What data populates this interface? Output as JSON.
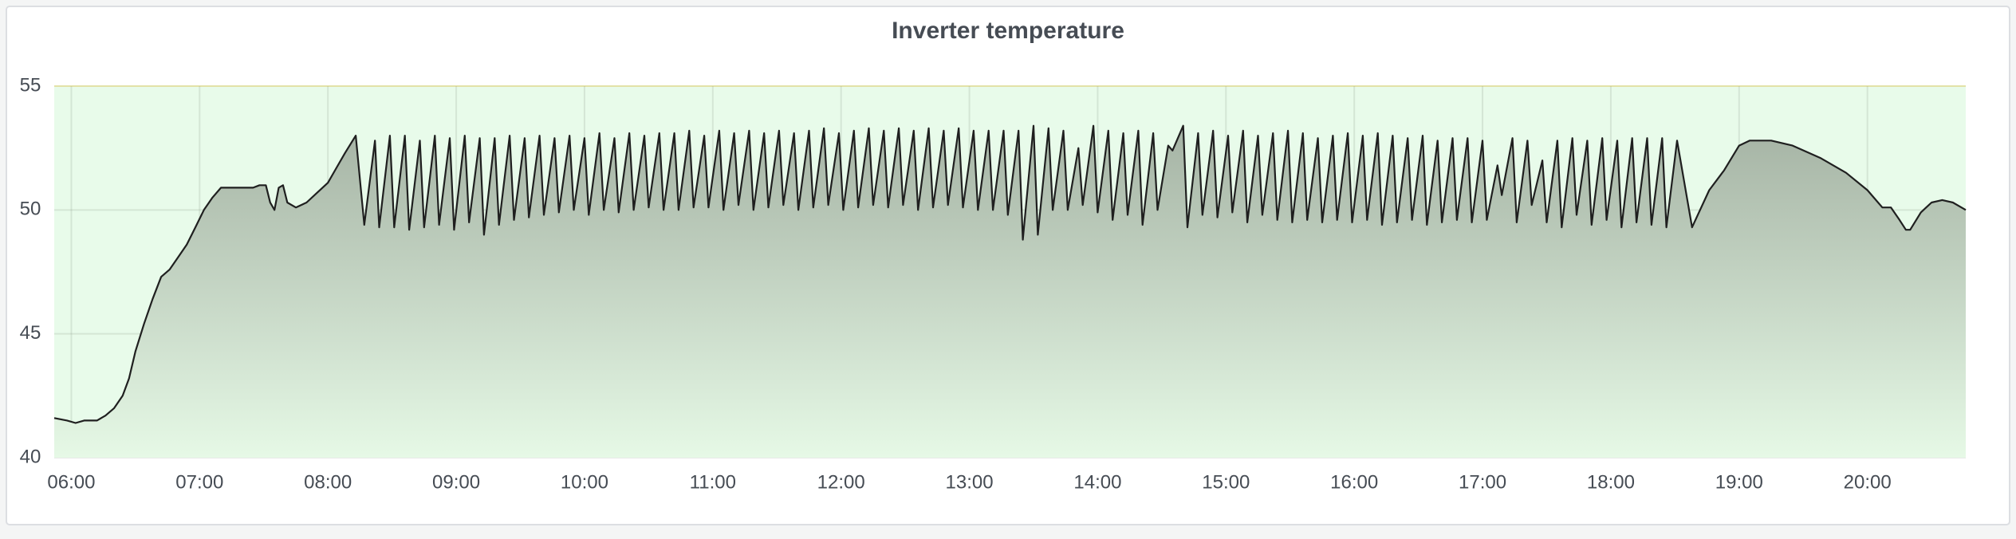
{
  "chart_data": {
    "type": "line",
    "title": "Inverter temperature",
    "x": [
      352,
      358,
      362,
      366,
      372,
      376,
      380,
      384,
      387,
      390,
      394,
      398,
      402,
      406,
      410,
      414,
      418,
      422,
      426,
      430,
      445,
      448,
      451,
      453,
      455,
      457,
      459,
      461,
      465,
      470,
      475,
      480,
      484,
      488,
      493,
      497,
      502,
      504,
      509,
      511,
      516,
      518,
      523,
      525,
      530,
      532,
      537,
      539,
      544,
      546,
      551,
      553,
      558,
      560,
      565,
      567,
      572,
      574,
      579,
      581,
      586,
      588,
      593,
      595,
      600,
      602,
      607,
      609,
      614,
      616,
      621,
      623,
      628,
      630,
      635,
      637,
      642,
      644,
      649,
      651,
      656,
      658,
      663,
      665,
      670,
      672,
      677,
      679,
      684,
      686,
      691,
      693,
      698,
      700,
      705,
      707,
      712,
      714,
      719,
      721,
      726,
      728,
      733,
      735,
      740,
      742,
      747,
      749,
      754,
      756,
      761,
      763,
      768,
      770,
      775,
      777,
      782,
      784,
      789,
      791,
      796,
      798,
      803,
      805,
      810,
      812,
      817,
      819,
      824,
      826,
      831,
      833,
      838,
      840,
      845,
      847,
      852,
      854,
      859,
      861,
      866,
      868,
      873,
      875,
      880,
      882,
      887,
      889,
      894,
      896,
      901,
      903,
      908,
      910,
      915,
      917,
      922,
      924,
      929,
      931,
      936,
      938,
      943,
      945,
      950,
      952,
      957,
      959,
      964,
      966,
      971,
      973,
      978,
      980,
      985,
      987,
      992,
      994,
      999,
      1001,
      1006,
      1008,
      1013,
      1015,
      1020,
      1022,
      1027,
      1029,
      1034,
      1036,
      1041,
      1043,
      1048,
      1050,
      1055,
      1057,
      1062,
      1064,
      1069,
      1071,
      1076,
      1078,
      1083,
      1085,
      1090,
      1092,
      1097,
      1099,
      1104,
      1106,
      1111,
      1118,
      1126,
      1133,
      1140,
      1145,
      1155,
      1165,
      1178,
      1190,
      1200,
      1207,
      1211,
      1215,
      1218,
      1220,
      1225,
      1230,
      1235,
      1240,
      1246
    ],
    "values": [
      41.6,
      41.5,
      41.4,
      41.5,
      41.5,
      41.7,
      42.0,
      42.5,
      43.2,
      44.3,
      45.4,
      46.4,
      47.3,
      47.6,
      48.1,
      48.6,
      49.3,
      50.0,
      50.5,
      50.9,
      50.9,
      51.0,
      51.0,
      50.3,
      50.0,
      50.9,
      51.0,
      50.3,
      50.1,
      50.3,
      50.7,
      51.1,
      51.7,
      52.3,
      53.0,
      49.4,
      52.8,
      49.3,
      53.0,
      49.3,
      53.0,
      49.2,
      52.8,
      49.3,
      53.0,
      49.4,
      52.9,
      49.2,
      53.0,
      49.5,
      52.9,
      49.0,
      52.9,
      49.4,
      53.0,
      49.6,
      52.9,
      49.7,
      53.0,
      49.8,
      52.9,
      49.9,
      53.0,
      50.0,
      52.9,
      49.8,
      53.1,
      50.0,
      52.9,
      49.9,
      53.1,
      50.0,
      53.0,
      50.1,
      53.1,
      50.0,
      53.1,
      50.0,
      53.2,
      50.1,
      53.0,
      50.1,
      53.2,
      50.0,
      53.1,
      50.2,
      53.2,
      50.0,
      53.1,
      50.1,
      53.2,
      50.2,
      53.1,
      50.0,
      53.2,
      50.1,
      53.3,
      50.2,
      53.1,
      50.0,
      53.2,
      50.1,
      53.3,
      50.2,
      53.2,
      50.1,
      53.3,
      50.2,
      53.2,
      50.0,
      53.3,
      50.1,
      53.2,
      50.2,
      53.3,
      50.1,
      53.2,
      50.0,
      53.2,
      50.0,
      53.2,
      49.8,
      53.2,
      48.8,
      53.4,
      49.0,
      53.3,
      50.0,
      53.2,
      50.0,
      52.5,
      50.2,
      53.4,
      49.9,
      53.2,
      49.6,
      53.1,
      49.8,
      53.2,
      49.4,
      53.1,
      50.0,
      52.6,
      52.4,
      53.4,
      49.3,
      53.1,
      49.8,
      53.2,
      49.7,
      53.0,
      49.9,
      53.2,
      49.5,
      53.0,
      49.8,
      53.1,
      49.6,
      53.2,
      49.5,
      53.1,
      49.6,
      52.9,
      49.5,
      53.0,
      49.6,
      53.1,
      49.5,
      53.0,
      49.6,
      53.1,
      49.4,
      53.0,
      49.5,
      52.9,
      49.6,
      53.0,
      49.4,
      52.8,
      49.5,
      52.9,
      49.6,
      52.9,
      49.5,
      52.8,
      49.6,
      51.8,
      50.6,
      52.9,
      49.5,
      52.8,
      50.2,
      52.0,
      49.5,
      52.8,
      49.3,
      52.9,
      49.8,
      52.8,
      49.4,
      52.9,
      49.6,
      52.8,
      49.3,
      52.9,
      49.5,
      52.9,
      49.4,
      52.9,
      49.3,
      52.8,
      49.3,
      50.8,
      51.6,
      52.6,
      52.8,
      52.8,
      52.6,
      52.1,
      51.5,
      50.8,
      50.1,
      50.1,
      49.6,
      49.2,
      49.2,
      49.9,
      50.3,
      50.4,
      50.3,
      50.0
    ],
    "color": "#1f1f1f",
    "xlim": [
      352,
      1246
    ],
    "xticks": [
      {
        "value": 360,
        "label": "06:00"
      },
      {
        "value": 420,
        "label": "07:00"
      },
      {
        "value": 480,
        "label": "08:00"
      },
      {
        "value": 540,
        "label": "09:00"
      },
      {
        "value": 600,
        "label": "10:00"
      },
      {
        "value": 660,
        "label": "11:00"
      },
      {
        "value": 720,
        "label": "12:00"
      },
      {
        "value": 780,
        "label": "13:00"
      },
      {
        "value": 840,
        "label": "14:00"
      },
      {
        "value": 900,
        "label": "15:00"
      },
      {
        "value": 960,
        "label": "16:00"
      },
      {
        "value": 1020,
        "label": "17:00"
      },
      {
        "value": 1080,
        "label": "18:00"
      },
      {
        "value": 1140,
        "label": "19:00"
      },
      {
        "value": 1200,
        "label": "20:00"
      }
    ],
    "ylim": [
      40,
      55
    ],
    "yticks": [
      40,
      45,
      50,
      55
    ],
    "grid": true
  }
}
